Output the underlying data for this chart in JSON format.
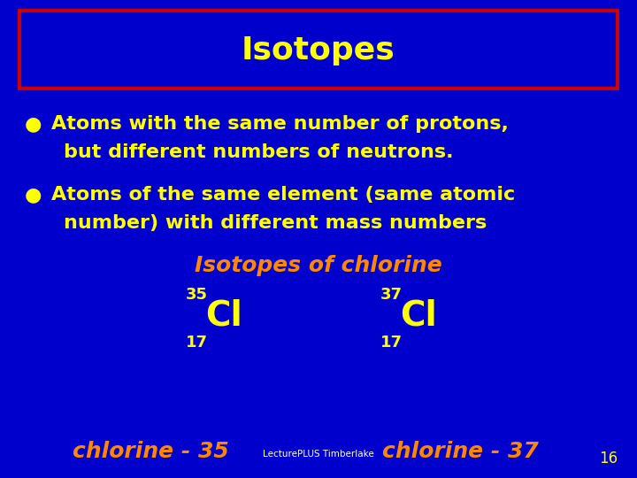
{
  "bg_color": "#0000CC",
  "title": "Isotopes",
  "title_color": "#FFFF00",
  "title_box_color": "#CC0000",
  "bullet_color": "#FFFF00",
  "text_color": "#FFFF00",
  "orange_color": "#FF8800",
  "bullet1_line1": "Atoms with the same number of protons,",
  "bullet1_line2": "but different numbers of neutrons.",
  "bullet2_line1": "Atoms of the same element (same atomic",
  "bullet2_line2": "number) with different mass numbers",
  "isotopes_header": "Isotopes of chlorine",
  "cl35_super": "35",
  "cl35_main": "Cl",
  "cl35_sub": "17",
  "cl37_super": "37",
  "cl37_main": "Cl",
  "cl37_sub": "17",
  "bottom_left": "chlorine - 35",
  "bottom_center": "LecturePLUS Timberlake",
  "bottom_right": "chlorine - 37",
  "page_num": "16"
}
